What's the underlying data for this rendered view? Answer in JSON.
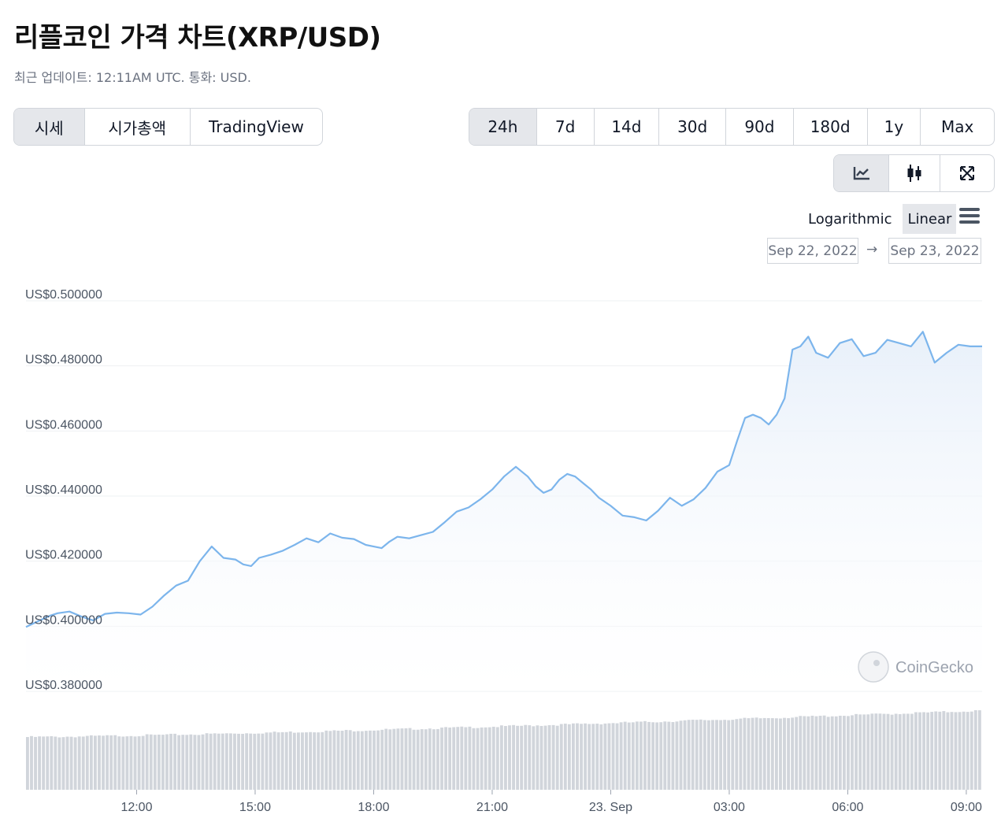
{
  "header": {
    "title": "리플코인 가격 차트(XRP/USD)",
    "subtitle": "최근 업데이트: 12:11AM UTC. 통화: USD."
  },
  "view_tabs": [
    {
      "label": "시세",
      "active": true
    },
    {
      "label": "시가총액",
      "active": false
    },
    {
      "label": "TradingView",
      "active": false
    }
  ],
  "range_tabs": [
    {
      "label": "24h",
      "active": true
    },
    {
      "label": "7d",
      "active": false
    },
    {
      "label": "14d",
      "active": false
    },
    {
      "label": "30d",
      "active": false
    },
    {
      "label": "90d",
      "active": false
    },
    {
      "label": "180d",
      "active": false
    },
    {
      "label": "1y",
      "active": false
    },
    {
      "label": "Max",
      "active": false
    }
  ],
  "chart_tools": [
    {
      "icon": "line-chart-icon",
      "active": true
    },
    {
      "icon": "candlestick-icon",
      "active": false
    },
    {
      "icon": "expand-icon",
      "active": false
    }
  ],
  "scale": {
    "logarithmic_label": "Logarithmic",
    "linear_label": "Linear",
    "selected": "Linear"
  },
  "date_range": {
    "from": "Sep 22, 2022",
    "arrow": "→",
    "to": "Sep 23, 2022"
  },
  "watermark": "CoinGecko",
  "colors": {
    "line": "#7cb5ec",
    "area_top": "#e8f0fa",
    "volume": "#d1d5db",
    "grid": "#eef0f3",
    "active_bg": "#e5e7eb"
  },
  "chart_data": {
    "type": "area",
    "y_tick_labels": [
      "US$0.500000",
      "US$0.480000",
      "US$0.460000",
      "US$0.440000",
      "US$0.420000",
      "US$0.400000",
      "US$0.380000"
    ],
    "y_ticks": [
      0.5,
      0.48,
      0.46,
      0.44,
      0.42,
      0.4,
      0.38
    ],
    "ylim": [
      0.38,
      0.5
    ],
    "x_tick_labels": [
      "12:00",
      "15:00",
      "18:00",
      "21:00",
      "23. Sep",
      "03:00",
      "06:00",
      "09:00"
    ],
    "x_tick_hours": [
      12,
      15,
      18,
      21,
      24,
      27,
      30,
      33
    ],
    "x_range_hours": [
      9.2,
      33.4
    ],
    "grid": true,
    "legend": "none",
    "series": [
      {
        "x_hours": [
          9.2,
          9.5,
          9.8,
          10.0,
          10.3,
          10.6,
          10.9,
          11.2,
          11.5,
          11.8,
          12.1,
          12.4,
          12.7,
          13.0,
          13.3,
          13.6,
          13.9,
          14.2,
          14.5,
          14.7,
          14.9,
          15.1,
          15.4,
          15.7,
          16.0,
          16.3,
          16.6,
          16.9,
          17.2,
          17.5,
          17.8,
          18.0,
          18.2,
          18.4,
          18.6,
          18.9,
          19.2,
          19.5,
          19.8,
          20.1,
          20.4,
          20.7,
          21.0,
          21.3,
          21.6,
          21.9,
          22.1,
          22.3,
          22.5,
          22.7,
          22.9,
          23.1,
          23.3,
          23.5,
          23.7,
          24.0,
          24.3,
          24.6,
          24.9,
          25.2,
          25.5,
          25.8,
          26.1,
          26.4,
          26.7,
          27.0,
          27.2,
          27.4,
          27.6,
          27.8,
          28.0,
          28.2,
          28.4,
          28.6,
          28.8,
          29.0,
          29.2,
          29.5,
          29.8,
          30.1,
          30.4,
          30.7,
          31.0,
          31.3,
          31.6,
          31.9,
          32.2,
          32.5,
          32.8,
          33.1,
          33.4
        ],
        "values": [
          0.3998,
          0.4015,
          0.4032,
          0.404,
          0.4045,
          0.403,
          0.4018,
          0.4038,
          0.4042,
          0.404,
          0.4036,
          0.406,
          0.4095,
          0.4125,
          0.414,
          0.42,
          0.4245,
          0.421,
          0.4205,
          0.419,
          0.4185,
          0.421,
          0.422,
          0.4232,
          0.425,
          0.427,
          0.4258,
          0.4285,
          0.4272,
          0.4268,
          0.425,
          0.4245,
          0.424,
          0.426,
          0.4275,
          0.427,
          0.428,
          0.429,
          0.432,
          0.4352,
          0.4365,
          0.439,
          0.442,
          0.446,
          0.449,
          0.446,
          0.443,
          0.441,
          0.442,
          0.445,
          0.4468,
          0.446,
          0.444,
          0.442,
          0.4395,
          0.437,
          0.434,
          0.4335,
          0.4325,
          0.4355,
          0.4395,
          0.437,
          0.439,
          0.4425,
          0.4475,
          0.4495,
          0.457,
          0.464,
          0.465,
          0.464,
          0.462,
          0.465,
          0.47,
          0.485,
          0.486,
          0.489,
          0.484,
          0.4825,
          0.487,
          0.4882,
          0.483,
          0.484,
          0.488,
          0.487,
          0.486,
          0.4905,
          0.481,
          0.484,
          0.4865,
          0.486,
          0.486
        ]
      }
    ],
    "volume": {
      "unit": "relative",
      "start_level": 0.62,
      "end_level": 0.93
    }
  }
}
